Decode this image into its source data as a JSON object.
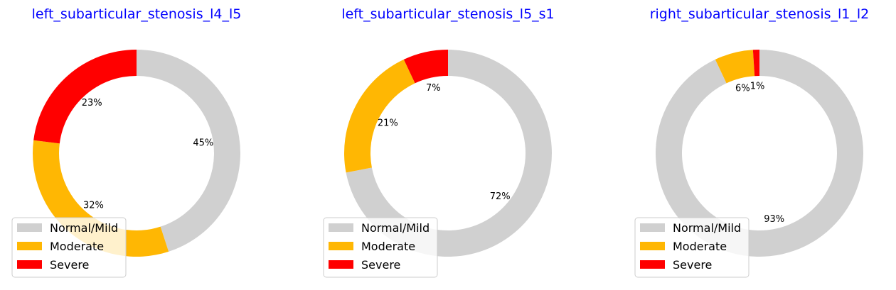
{
  "chart_data": [
    {
      "type": "pie",
      "title": "left_subarticular_stenosis_l4_l5",
      "categories": [
        "Normal/Mild",
        "Moderate",
        "Severe"
      ],
      "values": [
        45,
        32,
        23
      ],
      "labels": [
        "45%",
        "32%",
        "23%"
      ],
      "legend": "lower-left"
    },
    {
      "type": "pie",
      "title": "left_subarticular_stenosis_l5_s1",
      "categories": [
        "Normal/Mild",
        "Moderate",
        "Severe"
      ],
      "values": [
        72,
        21,
        7
      ],
      "labels": [
        "72%",
        "21%",
        "7%"
      ],
      "legend": "lower-left"
    },
    {
      "type": "pie",
      "title": "right_subarticular_stenosis_l1_l2",
      "categories": [
        "Normal/Mild",
        "Moderate",
        "Severe"
      ],
      "values": [
        93,
        6,
        1
      ],
      "labels": [
        "93%",
        "6%",
        "1%"
      ],
      "legend": "lower-left"
    }
  ],
  "colors": [
    "#d0d0d0",
    "#ffb703",
    "#ff0000"
  ],
  "title_color": "#0000ff"
}
